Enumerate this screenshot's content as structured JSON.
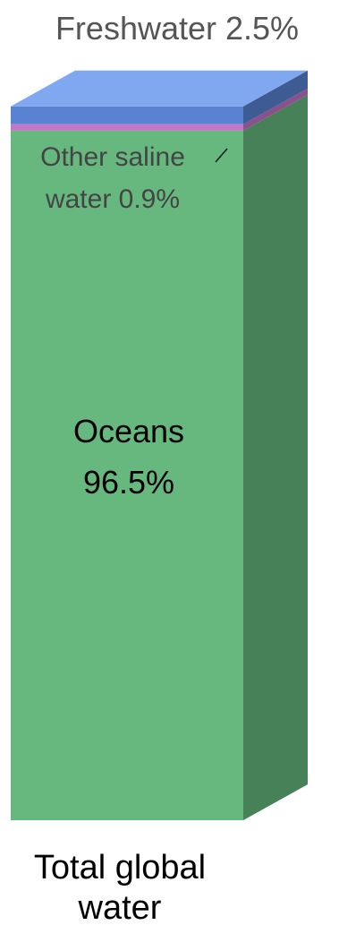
{
  "chart_data": {
    "type": "bar",
    "stacked": true,
    "three_d": true,
    "title": "",
    "xlabel": "",
    "ylabel": "",
    "categories": [
      "Total global water"
    ],
    "series": [
      {
        "name": "Oceans",
        "value": 96.5,
        "label_line1": "Oceans",
        "label_line2": "96.5%",
        "front_color": "#66b87e",
        "side_color": "#468157",
        "top_color": "#8fd3a0"
      },
      {
        "name": "Other saline water",
        "value": 0.9,
        "label_line1": "Other saline",
        "label_line2": "water 0.9%",
        "front_color": "#c676c6",
        "side_color": "#8a528a",
        "top_color": "#dca0dc"
      },
      {
        "name": "Freshwater",
        "value": 2.5,
        "label_line1": "Freshwater 2.5%",
        "front_color": "#5a82d2",
        "side_color": "#3f5b93",
        "top_color": "#7fa8f0"
      }
    ],
    "category_label_lines": [
      "Total global",
      "water"
    ],
    "ylim": [
      0,
      100
    ],
    "unit": "%",
    "grid": false,
    "legend": "none"
  }
}
